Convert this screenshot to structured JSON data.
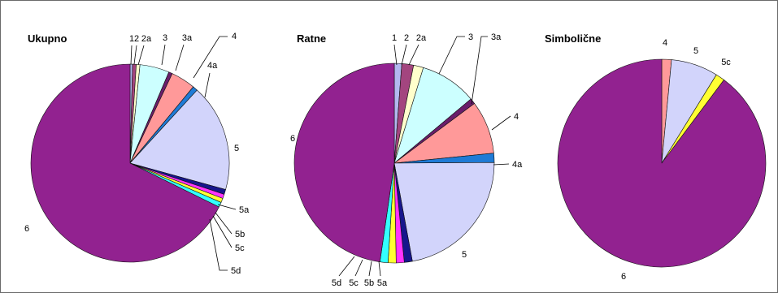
{
  "chart_data": [
    {
      "type": "pie",
      "title": "Ukupno",
      "slices": [
        {
          "label": "1",
          "value": 0.4,
          "color": "#b3b8f0"
        },
        {
          "label": "2",
          "value": 0.6,
          "color": "#a3457f"
        },
        {
          "label": "2a",
          "value": 0.6,
          "color": "#ffffcc"
        },
        {
          "label": "3",
          "value": 4.8,
          "color": "#ccffff"
        },
        {
          "label": "3a",
          "value": 0.6,
          "color": "#6a1d6b"
        },
        {
          "label": "4",
          "value": 4.0,
          "color": "#ff9999"
        },
        {
          "label": "4a",
          "value": 0.8,
          "color": "#1f7bd6"
        },
        {
          "label": "5",
          "value": 17.5,
          "color": "#d2d4fb"
        },
        {
          "label": "5a",
          "value": 0.8,
          "color": "#17168c"
        },
        {
          "label": "5b",
          "value": 0.7,
          "color": "#ff33ff"
        },
        {
          "label": "5c",
          "value": 0.7,
          "color": "#ffff33"
        },
        {
          "label": "5d",
          "value": 0.8,
          "color": "#33ffff"
        },
        {
          "label": "6",
          "value": 67.7,
          "color": "#922290"
        }
      ]
    },
    {
      "type": "pie",
      "title": "Ratne",
      "slices": [
        {
          "label": "1",
          "value": 1.2,
          "color": "#b3b8f0"
        },
        {
          "label": "2",
          "value": 1.9,
          "color": "#a3457f"
        },
        {
          "label": "2a",
          "value": 1.6,
          "color": "#ffffcc"
        },
        {
          "label": "3",
          "value": 9.2,
          "color": "#ccffff"
        },
        {
          "label": "3a",
          "value": 0.9,
          "color": "#6a1d6b"
        },
        {
          "label": "4",
          "value": 8.6,
          "color": "#ff9999"
        },
        {
          "label": "4a",
          "value": 1.5,
          "color": "#1f7bd6"
        },
        {
          "label": "5",
          "value": 22.2,
          "color": "#d2d4fb"
        },
        {
          "label": "5a",
          "value": 1.3,
          "color": "#17168c"
        },
        {
          "label": "5b",
          "value": 1.3,
          "color": "#ff33ff"
        },
        {
          "label": "5c",
          "value": 1.3,
          "color": "#ffff33"
        },
        {
          "label": "5d",
          "value": 1.3,
          "color": "#33ffff"
        },
        {
          "label": "6",
          "value": 47.7,
          "color": "#922290"
        }
      ]
    },
    {
      "type": "pie",
      "title": "Simbolične",
      "slices": [
        {
          "label": "4",
          "value": 1.5,
          "color": "#ff9999"
        },
        {
          "label": "5",
          "value": 7.3,
          "color": "#d2d4fb"
        },
        {
          "label": "5c",
          "value": 1.4,
          "color": "#ffff33"
        },
        {
          "label": "6",
          "value": 89.8,
          "color": "#922290"
        }
      ]
    }
  ]
}
